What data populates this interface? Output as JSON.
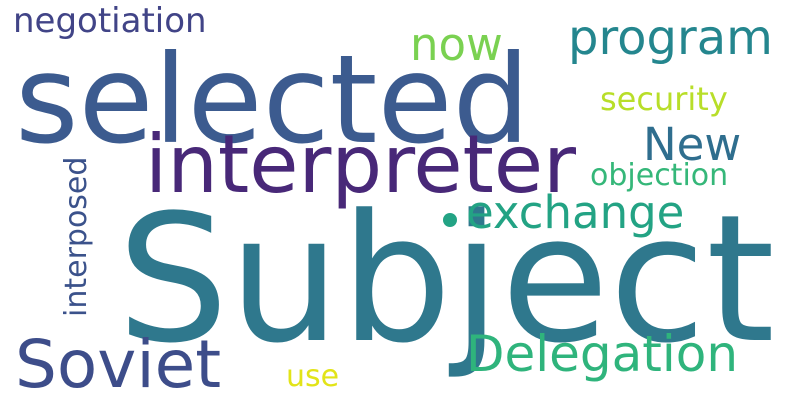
{
  "words": {
    "subject": "Subject",
    "selected": "selected",
    "interpreter": "interpreter",
    "soviet": "Soviet",
    "delegation": "Delegation",
    "program": "program",
    "exchange": "exchange",
    "new": "New",
    "now": "now",
    "negotiation": "negotiation",
    "security": "security",
    "objection": "objection",
    "use": "use",
    "interposed": "interposed"
  },
  "colors": {
    "background": "#ffffff",
    "subject": "#2f788d",
    "selected": "#3c5b8f",
    "interpreter": "#482878",
    "soviet": "#3d4d8a",
    "delegation": "#2fb47c",
    "program": "#24868e",
    "exchange": "#23a384",
    "new": "#2f6e8e",
    "now": "#7ad151",
    "negotiation": "#414487",
    "security": "#b8de29",
    "objection": "#35b779",
    "use": "#e2e418",
    "interposed": "#3b528b"
  }
}
